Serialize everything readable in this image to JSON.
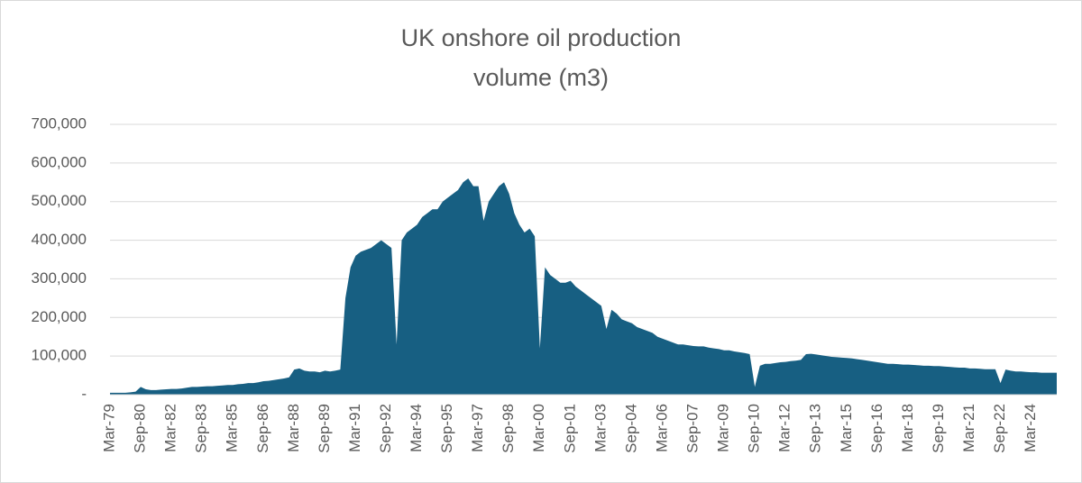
{
  "chart_data": {
    "type": "area",
    "title": [
      "UK onshore oil production",
      "volume (m3)"
    ],
    "color": "#175f82",
    "grid": true,
    "ylim": [
      0,
      700000
    ],
    "yticks": [
      {
        "value": 0,
        "label": "-"
      },
      {
        "value": 100000,
        "label": "100,000"
      },
      {
        "value": 200000,
        "label": "200,000"
      },
      {
        "value": 300000,
        "label": "300,000"
      },
      {
        "value": 400000,
        "label": "400,000"
      },
      {
        "value": 500000,
        "label": "500,000"
      },
      {
        "value": 600000,
        "label": "600,000"
      },
      {
        "value": 700000,
        "label": "700,000"
      }
    ],
    "categories": [
      "Mar-79",
      null,
      null,
      null,
      null,
      null,
      "Sep-80",
      null,
      null,
      null,
      null,
      null,
      "Mar-82",
      null,
      null,
      null,
      null,
      null,
      "Sep-83",
      null,
      null,
      null,
      null,
      null,
      "Mar-85",
      null,
      null,
      null,
      null,
      null,
      "Sep-86",
      null,
      null,
      null,
      null,
      null,
      "Mar-88",
      null,
      null,
      null,
      null,
      null,
      "Sep-89",
      null,
      null,
      null,
      null,
      null,
      "Mar-91",
      null,
      null,
      null,
      null,
      null,
      "Sep-92",
      null,
      null,
      null,
      null,
      null,
      "Mar-94",
      null,
      null,
      null,
      null,
      null,
      "Sep-95",
      null,
      null,
      null,
      null,
      null,
      "Mar-97",
      null,
      null,
      null,
      null,
      null,
      "Sep-98",
      null,
      null,
      null,
      null,
      null,
      "Mar-00",
      null,
      null,
      null,
      null,
      null,
      "Sep-01",
      null,
      null,
      null,
      null,
      null,
      "Mar-03",
      null,
      null,
      null,
      null,
      null,
      "Sep-04",
      null,
      null,
      null,
      null,
      null,
      "Mar-06",
      null,
      null,
      null,
      null,
      null,
      "Sep-07",
      null,
      null,
      null,
      null,
      null,
      "Mar-09",
      null,
      null,
      null,
      null,
      null,
      "Sep-10",
      null,
      null,
      null,
      null,
      null,
      "Mar-12",
      null,
      null,
      null,
      null,
      null,
      "Sep-13",
      null,
      null,
      null,
      null,
      null,
      "Mar-15",
      null,
      null,
      null,
      null,
      null,
      "Sep-16",
      null,
      null,
      null,
      null,
      null,
      "Mar-18",
      null,
      null,
      null,
      null,
      null,
      "Sep-19",
      null,
      null,
      null,
      null,
      null,
      "Mar-21",
      null,
      null,
      null,
      null,
      null,
      "Sep-22",
      null,
      null,
      null,
      null,
      null,
      "Mar-24",
      null,
      null,
      null,
      null,
      null
    ],
    "values": [
      5000,
      5000,
      5000,
      5000,
      6000,
      8000,
      20000,
      14000,
      12000,
      12000,
      13000,
      14000,
      15000,
      15000,
      16000,
      18000,
      20000,
      20000,
      21000,
      22000,
      22000,
      23000,
      24000,
      25000,
      25000,
      27000,
      28000,
      30000,
      30000,
      32000,
      35000,
      36000,
      38000,
      40000,
      42000,
      45000,
      65000,
      68000,
      62000,
      60000,
      60000,
      58000,
      62000,
      60000,
      62000,
      65000,
      250000,
      330000,
      360000,
      370000,
      375000,
      380000,
      390000,
      400000,
      390000,
      380000,
      130000,
      400000,
      420000,
      430000,
      440000,
      460000,
      470000,
      480000,
      480000,
      500000,
      510000,
      520000,
      530000,
      550000,
      560000,
      540000,
      540000,
      450000,
      500000,
      520000,
      540000,
      550000,
      520000,
      470000,
      440000,
      420000,
      430000,
      410000,
      120000,
      330000,
      310000,
      300000,
      290000,
      290000,
      295000,
      280000,
      270000,
      260000,
      250000,
      240000,
      230000,
      170000,
      220000,
      210000,
      195000,
      190000,
      185000,
      175000,
      170000,
      165000,
      160000,
      150000,
      145000,
      140000,
      135000,
      130000,
      130000,
      128000,
      126000,
      125000,
      125000,
      122000,
      120000,
      118000,
      115000,
      115000,
      112000,
      110000,
      108000,
      105000,
      20000,
      75000,
      80000,
      80000,
      82000,
      84000,
      85000,
      87000,
      88000,
      90000,
      105000,
      106000,
      104000,
      102000,
      100000,
      98000,
      97000,
      96000,
      95000,
      94000,
      92000,
      90000,
      88000,
      86000,
      84000,
      82000,
      80000,
      80000,
      79000,
      78000,
      78000,
      77000,
      76000,
      75000,
      75000,
      74000,
      74000,
      73000,
      72000,
      71000,
      70000,
      70000,
      68000,
      68000,
      67000,
      66000,
      66000,
      66000,
      30000,
      65000,
      62000,
      60000,
      60000,
      59000,
      58000,
      58000,
      57000,
      57000,
      57000,
      57000
    ]
  }
}
